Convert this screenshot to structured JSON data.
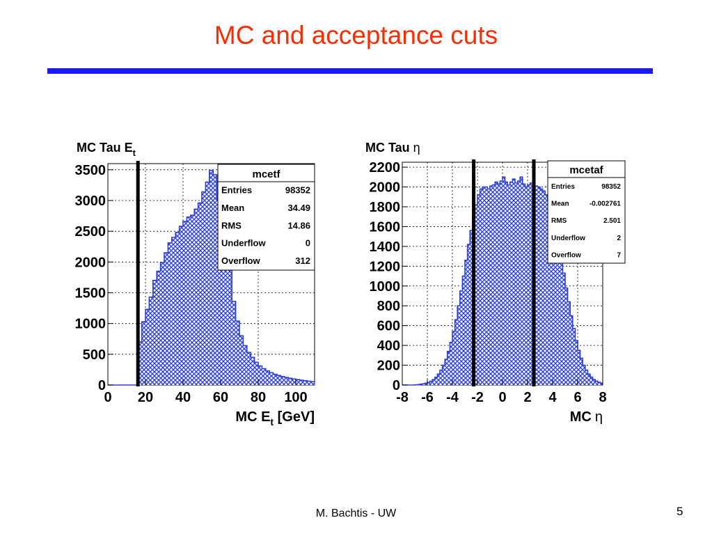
{
  "slide": {
    "title": "MC and acceptance cuts",
    "footer": "M. Bachtis - UW",
    "page_number": "5",
    "title_color": "#ff2a00",
    "rule_color": "#1a1aff"
  },
  "chart_data": [
    {
      "type": "bar",
      "title": "MC Tau E",
      "title_sub": "t",
      "xlabel": "MC E",
      "xlabel_sub": "t",
      "xlabel_unit": " [GeV]",
      "ylabel": "",
      "xlim": [
        0,
        110
      ],
      "ylim": [
        0,
        3600
      ],
      "xticks": [
        0,
        20,
        40,
        60,
        80,
        100
      ],
      "yticks": [
        0,
        500,
        1000,
        1500,
        2000,
        2500,
        3000,
        3500
      ],
      "grid": true,
      "fill_color": "#2b3fe0",
      "cut_lines": [
        16
      ],
      "bin_width": 2,
      "bin_start": 0,
      "values": [
        0,
        0,
        0,
        0,
        0,
        0,
        0,
        0,
        700,
        1030,
        1230,
        1430,
        1700,
        1850,
        1990,
        2150,
        2310,
        2400,
        2480,
        2580,
        2660,
        2730,
        2760,
        2860,
        2960,
        3140,
        3300,
        3490,
        3420,
        3020,
        2850,
        2400,
        1970,
        1360,
        1040,
        800,
        640,
        530,
        450,
        370,
        310,
        265,
        230,
        200,
        175,
        155,
        138,
        122,
        110,
        98,
        88,
        78,
        70,
        62,
        55
      ],
      "stats": {
        "name": "mcetf",
        "rows": [
          {
            "label": "Entries",
            "value": "98352"
          },
          {
            "label": "Mean",
            "value": "34.49"
          },
          {
            "label": "RMS",
            "value": "14.86"
          },
          {
            "label": "Underflow",
            "value": "0"
          },
          {
            "label": "Overflow",
            "value": "312"
          }
        ]
      }
    },
    {
      "type": "bar",
      "title": "MC Tau",
      "title_greek": "η",
      "xlabel": "MC",
      "xlabel_greek": "η",
      "ylabel": "",
      "xlim": [
        -8,
        8
      ],
      "ylim": [
        0,
        2250
      ],
      "xticks": [
        -8,
        -6,
        -4,
        -2,
        0,
        2,
        4,
        6,
        8
      ],
      "yticks": [
        0,
        200,
        400,
        600,
        800,
        1000,
        1200,
        1400,
        1600,
        1800,
        2000,
        2200
      ],
      "grid": true,
      "fill_color": "#2b3fe0",
      "cut_lines": [
        -2.3,
        2.5
      ],
      "bin_width": 0.2,
      "bin_start": -8,
      "values": [
        0,
        0,
        0,
        0,
        0,
        2,
        4,
        8,
        12,
        18,
        26,
        38,
        55,
        78,
        110,
        150,
        200,
        260,
        340,
        430,
        540,
        660,
        800,
        950,
        1100,
        1260,
        1420,
        1560,
        1700,
        1820,
        1920,
        1980,
        2000,
        2000,
        1980,
        2010,
        2020,
        2050,
        2030,
        2060,
        2100,
        2050,
        2020,
        2050,
        2080,
        2040,
        2060,
        2100,
        2030,
        2000,
        2020,
        2040,
        2040,
        2010,
        2000,
        1980,
        1960,
        1920,
        1880,
        1820,
        1700,
        1580,
        1440,
        1280,
        1130,
        980,
        840,
        700,
        570,
        450,
        350,
        270,
        200,
        150,
        110,
        80,
        56,
        40,
        28,
        19,
        12,
        8,
        5,
        3,
        2,
        0
      ],
      "stats": {
        "name": "mcetaf",
        "rows": [
          {
            "label": "Entries",
            "value": "98352"
          },
          {
            "label": "Mean",
            "value": "-0.002761"
          },
          {
            "label": "RMS",
            "value": "2.501"
          },
          {
            "label": "Underflow",
            "value": "2"
          },
          {
            "label": "Overflow",
            "value": "7"
          }
        ]
      }
    }
  ]
}
